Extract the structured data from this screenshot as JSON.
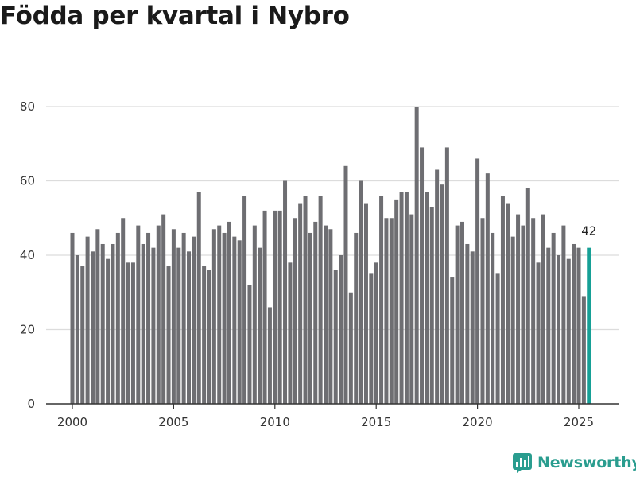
{
  "colors": {
    "bar": "#6e6e72",
    "highlight": "#16a096",
    "grid": "#dcdcdc",
    "axis": "#333333",
    "brand": "#2a9d8f"
  },
  "brand": {
    "name": "Newsworthy",
    "icon": "newsworthy-logo-icon"
  },
  "chart_data": {
    "type": "bar",
    "title": "Födda per kvartal i Nybro",
    "xlabel": "",
    "ylabel": "",
    "ylim": [
      0,
      80
    ],
    "yticks": [
      0,
      20,
      40,
      60,
      80
    ],
    "xticks": [
      "2000",
      "2005",
      "2010",
      "2015",
      "2020",
      "2025"
    ],
    "first_period": "2000 Q1",
    "frequency": "quarterly",
    "grid": true,
    "values": [
      46,
      40,
      37,
      45,
      41,
      47,
      43,
      39,
      43,
      46,
      50,
      38,
      38,
      48,
      43,
      46,
      42,
      48,
      51,
      37,
      47,
      42,
      46,
      41,
      45,
      57,
      37,
      36,
      47,
      48,
      46,
      49,
      45,
      44,
      56,
      32,
      48,
      42,
      52,
      26,
      52,
      52,
      60,
      38,
      50,
      54,
      56,
      46,
      49,
      56,
      48,
      47,
      36,
      40,
      64,
      30,
      46,
      60,
      54,
      35,
      38,
      56,
      50,
      50,
      55,
      57,
      57,
      51,
      80,
      69,
      57,
      53,
      63,
      59,
      69,
      34,
      48,
      49,
      43,
      41,
      66,
      50,
      62,
      46,
      35,
      56,
      54,
      45,
      51,
      48,
      58,
      50,
      38,
      51,
      42,
      46,
      40,
      48,
      39,
      43,
      42,
      29,
      42
    ],
    "highlight_index": 102,
    "highlight_label": "42"
  }
}
